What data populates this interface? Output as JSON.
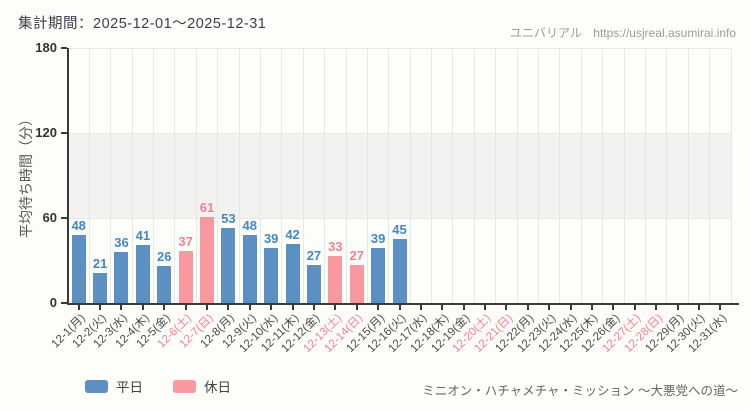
{
  "header": {
    "period_label": "集計期間：2025-12-01～2025-12-31",
    "site_name": "ユニバリアル",
    "site_url": "https://usjreal.asumirai.info"
  },
  "footer": {
    "attraction_name": "ミニオン・ハチャメチャ・ミッション ～大悪党への道～"
  },
  "chart_data": {
    "type": "bar",
    "title": "",
    "xlabel": "",
    "ylabel": "平均待ち時間（分）",
    "ylim": [
      0,
      180
    ],
    "yticks": [
      0,
      60,
      120,
      180
    ],
    "grid": true,
    "highlight_band": {
      "from": 60,
      "to": 120
    },
    "categories": [
      "12-1(月)",
      "12-2(火)",
      "12-3(水)",
      "12-4(木)",
      "12-5(金)",
      "12-6(土)",
      "12-7(日)",
      "12-8(月)",
      "12-9(火)",
      "12-10(水)",
      "12-11(木)",
      "12-12(金)",
      "12-13(土)",
      "12-14(日)",
      "12-15(月)",
      "12-16(火)",
      "12-17(水)",
      "12-18(木)",
      "12-19(金)",
      "12-20(土)",
      "12-21(日)",
      "12-22(月)",
      "12-23(火)",
      "12-24(水)",
      "12-25(木)",
      "12-26(金)",
      "12-27(土)",
      "12-28(日)",
      "12-29(月)",
      "12-30(火)",
      "12-31(水)"
    ],
    "is_weekend": [
      false,
      false,
      false,
      false,
      false,
      true,
      true,
      false,
      false,
      false,
      false,
      false,
      true,
      true,
      false,
      false,
      false,
      false,
      false,
      true,
      true,
      false,
      false,
      false,
      false,
      false,
      true,
      true,
      false,
      false,
      false
    ],
    "values": [
      48,
      21,
      36,
      41,
      26,
      37,
      61,
      53,
      48,
      39,
      42,
      27,
      33,
      27,
      39,
      45,
      null,
      null,
      null,
      null,
      null,
      null,
      null,
      null,
      null,
      null,
      null,
      null,
      null,
      null,
      null
    ],
    "legend": [
      {
        "label": "平日",
        "type": "weekday",
        "color": "#5d90c2"
      },
      {
        "label": "休日",
        "type": "weekend",
        "color": "#f9989e"
      }
    ],
    "legend_position": "bottom-left",
    "colors": {
      "weekday_bar": "#5d90c2",
      "weekend_bar": "#f9989e",
      "weekday_value_label": "#4388c3",
      "weekend_value_label": "#f5818c",
      "weekday_tick_label": "#4a4a4a",
      "weekend_tick_label": "#f5818c",
      "axis": "#3a3a3a",
      "gridline": "#e7e7e5",
      "band": "#f2f2f0",
      "background": "#fdfdfa"
    }
  }
}
